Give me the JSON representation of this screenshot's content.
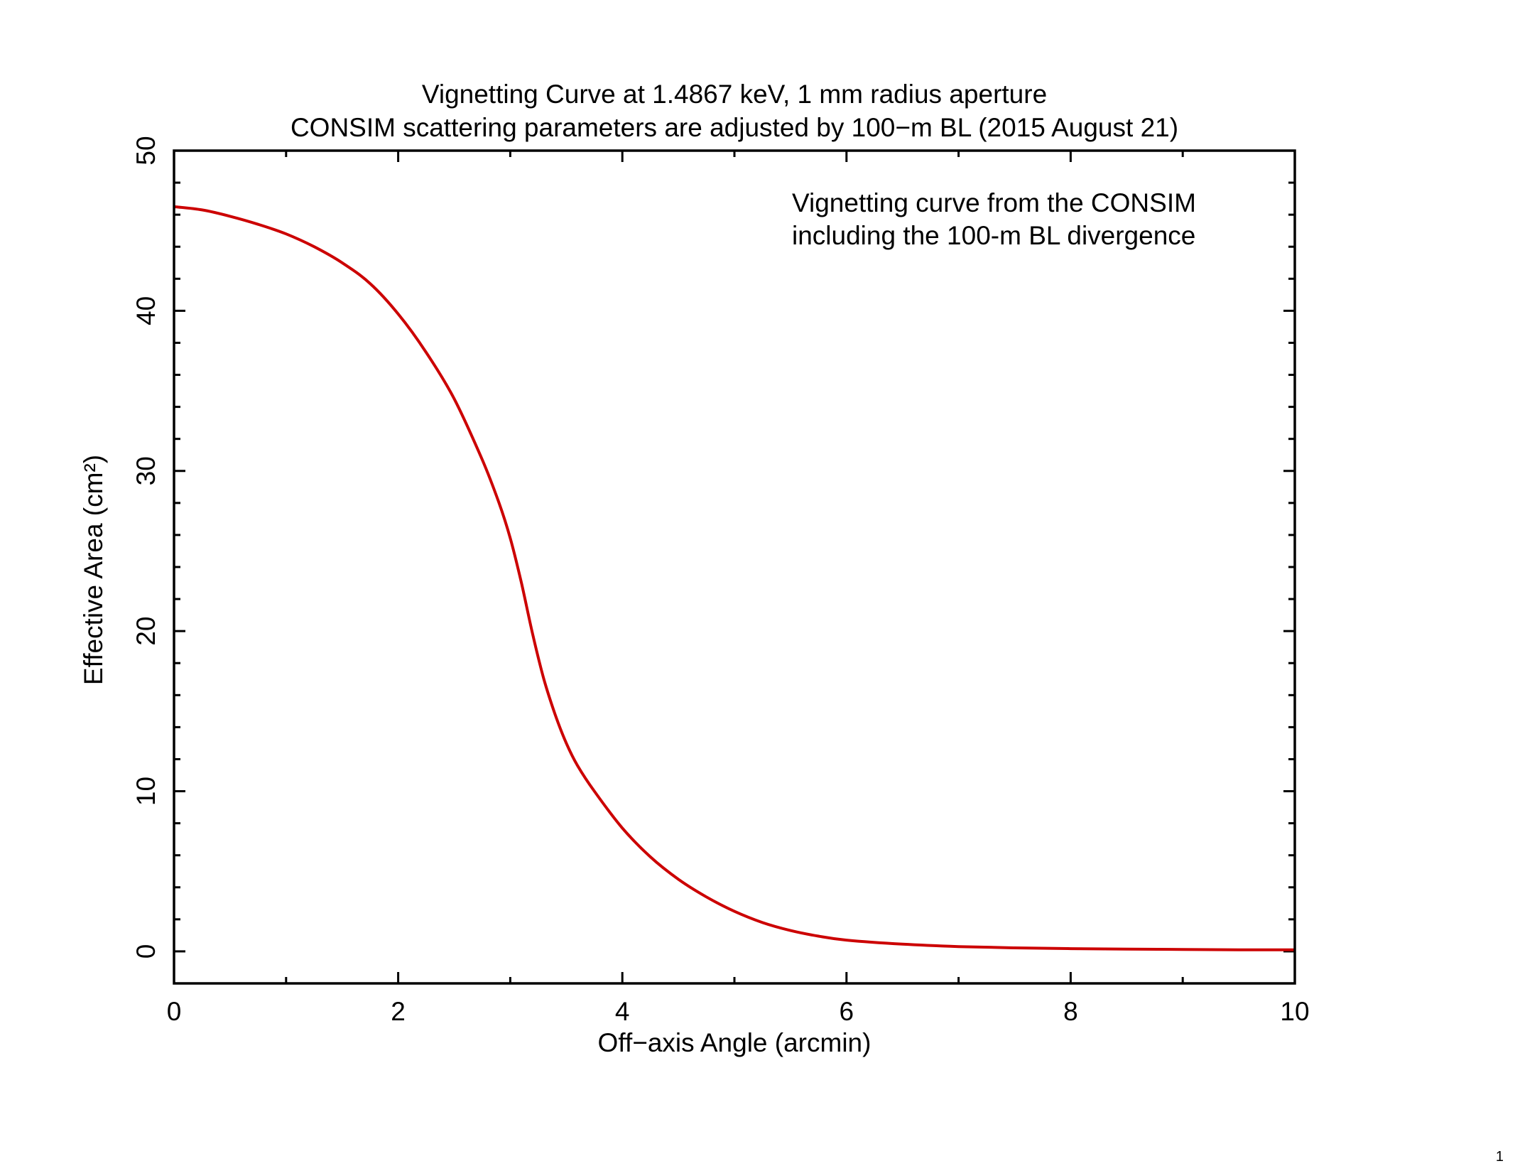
{
  "page": {
    "page_number": "1"
  },
  "chart_data": {
    "type": "line",
    "title": "Vignetting Curve at 1.4867 keV, 1 mm radius aperture",
    "subtitle": "CONSIM scattering parameters are adjusted by 100−m BL (2015 August 21)",
    "xlabel": "Off−axis Angle (arcmin)",
    "ylabel": "Effective Area (cm²)",
    "xlim": [
      0,
      10
    ],
    "ylim": [
      -2,
      50
    ],
    "x_ticks": [
      0,
      2,
      4,
      6,
      8,
      10
    ],
    "x_tick_labels": [
      "0",
      "2",
      "4",
      "6",
      "8",
      "10"
    ],
    "y_ticks": [
      0,
      10,
      20,
      30,
      40,
      50
    ],
    "y_tick_labels": [
      "0",
      "10",
      "20",
      "30",
      "40",
      "50"
    ],
    "grid": false,
    "annotations": [
      {
        "lines": [
          "Vignetting curve from the CONSIM",
          "including the 100-m BL divergence"
        ]
      }
    ],
    "series": [
      {
        "color": "#cc0000",
        "x": [
          0,
          0.25,
          0.5,
          0.75,
          1.0,
          1.25,
          1.5,
          1.75,
          2.0,
          2.25,
          2.5,
          2.75,
          2.9,
          3.0,
          3.1,
          3.2,
          3.3,
          3.4,
          3.5,
          3.6,
          3.75,
          4.0,
          4.25,
          4.5,
          4.75,
          5.0,
          5.25,
          5.5,
          5.75,
          6.0,
          6.5,
          7.0,
          7.5,
          8.0,
          8.5,
          9.0,
          9.5,
          10.0
        ],
        "y": [
          46.5,
          46.3,
          45.9,
          45.4,
          44.8,
          44.0,
          43.0,
          41.7,
          39.8,
          37.4,
          34.5,
          30.7,
          28.0,
          25.8,
          23.0,
          19.8,
          17.0,
          14.8,
          13.0,
          11.6,
          10.0,
          7.7,
          5.9,
          4.5,
          3.4,
          2.5,
          1.8,
          1.3,
          0.95,
          0.7,
          0.45,
          0.3,
          0.22,
          0.17,
          0.14,
          0.12,
          0.1,
          0.1
        ]
      }
    ]
  }
}
